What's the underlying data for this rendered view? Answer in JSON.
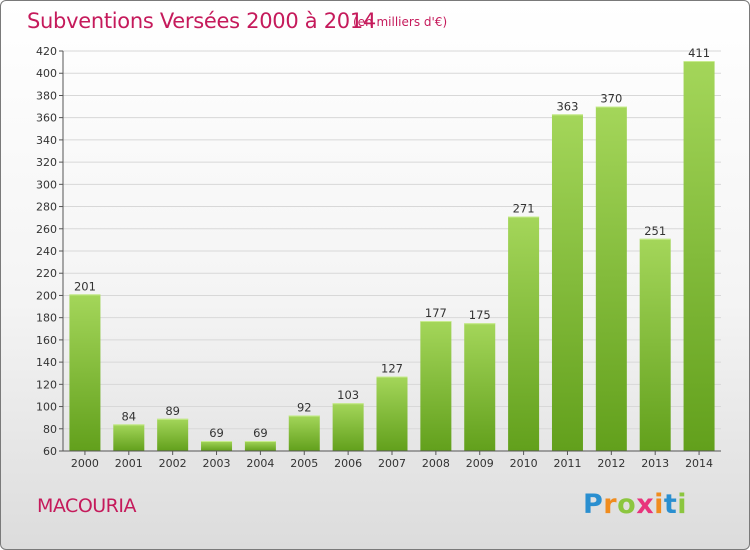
{
  "header": {
    "title": "Subventions Versées 2000 à 2014",
    "subtitle": "(en milliers d'€)"
  },
  "footer": {
    "commune": "MACOURIA",
    "logo_letters": [
      "P",
      "r",
      "o",
      "x",
      "i",
      "t",
      "i"
    ]
  },
  "colors": {
    "title": "#c51a5b",
    "bar_light": "#a4d65a",
    "bar_dark": "#62a01c",
    "grid": "#d8d8d8",
    "axis": "#555555"
  },
  "chart_data": {
    "type": "bar",
    "title": "Subventions Versées 2000 à 2014",
    "subtitle": "(en milliers d'€)",
    "categories": [
      "2000",
      "2001",
      "2002",
      "2003",
      "2004",
      "2005",
      "2006",
      "2007",
      "2008",
      "2009",
      "2010",
      "2011",
      "2012",
      "2013",
      "2014"
    ],
    "values": [
      201,
      84,
      89,
      69,
      69,
      92,
      103,
      127,
      177,
      175,
      271,
      363,
      370,
      251,
      411
    ],
    "ylim": [
      60,
      420
    ],
    "yticks": [
      60,
      80,
      100,
      120,
      140,
      160,
      180,
      200,
      220,
      240,
      260,
      280,
      300,
      320,
      340,
      360,
      380,
      400,
      420
    ],
    "grid": true,
    "legend": "none"
  }
}
